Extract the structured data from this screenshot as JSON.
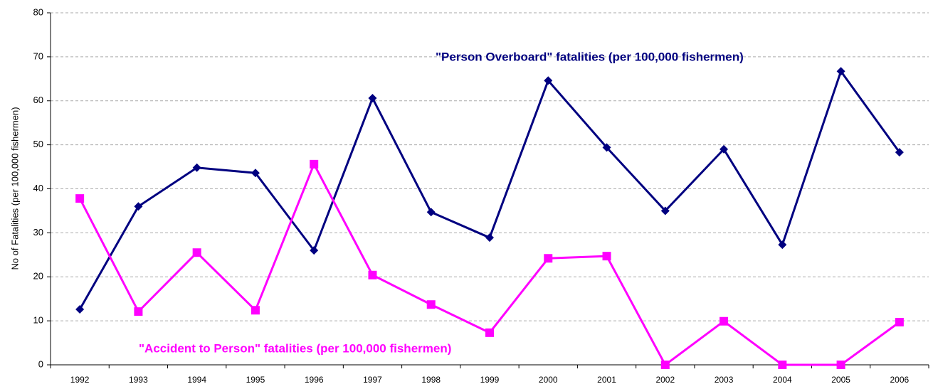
{
  "chart_data": {
    "type": "line",
    "y_label": "No of Fatalities (per 100,000 fishermen)",
    "categories": [
      "1992",
      "1993",
      "1994",
      "1995",
      "1996",
      "1997",
      "1998",
      "1999",
      "2000",
      "2001",
      "2002",
      "2003",
      "2004",
      "2005",
      "2006"
    ],
    "series": [
      {
        "name": "\"Person Overboard\" fatalities (per 100,000 fishermen)",
        "color": "#000080",
        "marker": "diamond",
        "values": [
          12.6,
          36,
          44.8,
          43.6,
          26,
          60.6,
          34.7,
          28.9,
          64.6,
          49.4,
          35,
          49,
          27.3,
          66.7,
          48.3
        ]
      },
      {
        "name": "\"Accident to Person\" fatalities (per 100,000 fishermen)",
        "color": "#ff00ff",
        "marker": "square",
        "values": [
          37.8,
          12.1,
          25.5,
          12.4,
          45.6,
          20.4,
          13.7,
          7.3,
          24.2,
          24.7,
          0,
          9.9,
          0,
          0,
          9.7
        ]
      }
    ],
    "ylim": [
      0,
      80
    ],
    "yticks": [
      0,
      10,
      20,
      30,
      40,
      50,
      60,
      70,
      80
    ],
    "grid": true
  }
}
